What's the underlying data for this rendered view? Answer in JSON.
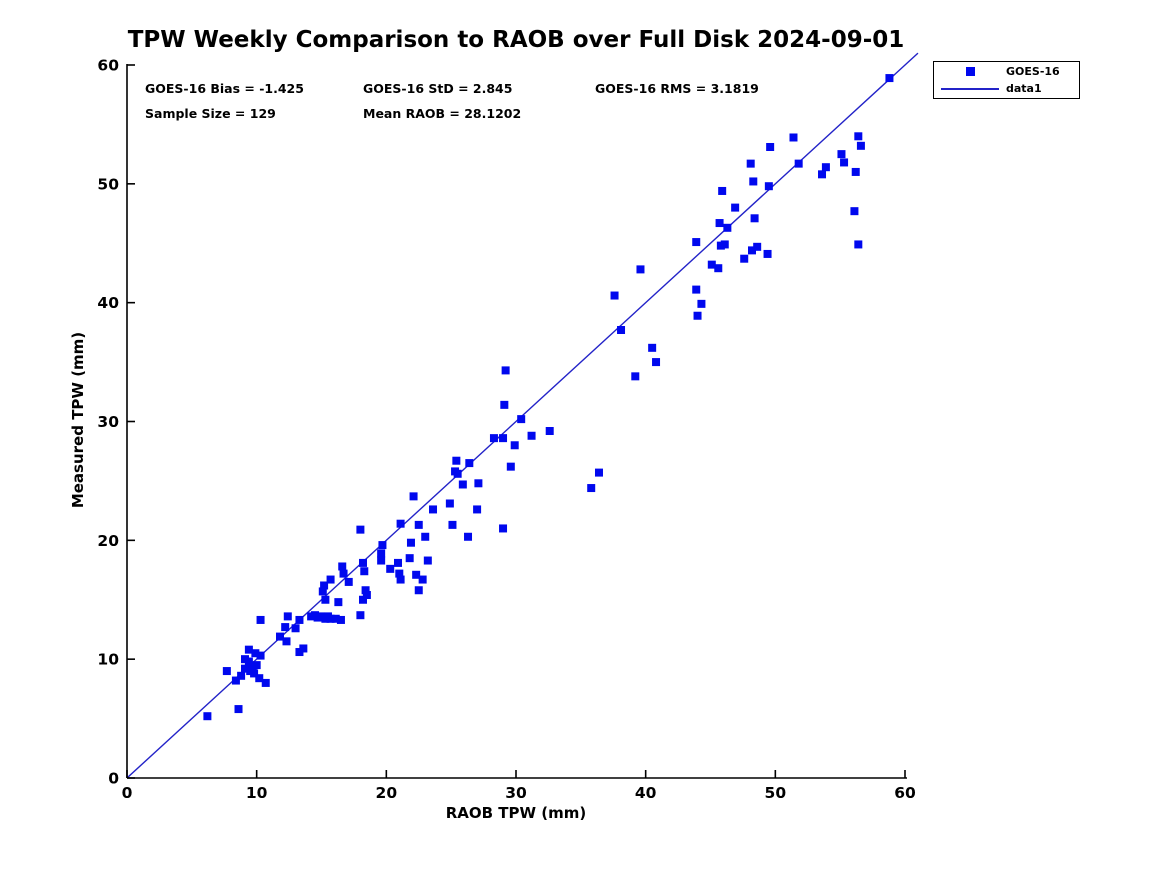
{
  "chart_data": {
    "type": "scatter",
    "title": "TPW Weekly Comparison to RAOB over Full Disk 2024-09-01",
    "xlabel": "RAOB TPW (mm)",
    "ylabel": "Measured TPW (mm)",
    "xlim": [
      0,
      60
    ],
    "ylim": [
      0,
      60
    ],
    "xticks": [
      0,
      10,
      20,
      30,
      40,
      50,
      60
    ],
    "yticks": [
      0,
      10,
      20,
      30,
      40,
      50,
      60
    ],
    "grid": false,
    "legend_position": "outside-top-right",
    "stats": {
      "bias": "GOES-16 Bias = -1.425",
      "std": "GOES-16 StD = 2.845",
      "rms": "GOES-16 RMS = 3.1819",
      "sample_size": "Sample Size = 129",
      "mean_raob": "Mean RAOB = 28.1202"
    },
    "legend": [
      {
        "label": "GOES-16",
        "symbol": "square-marker"
      },
      {
        "label": "data1",
        "symbol": "line"
      }
    ],
    "identity_line": {
      "x": [
        0,
        61
      ],
      "y": [
        0,
        61
      ]
    },
    "colors": {
      "marker": "#0008ee",
      "line": "#2323c8",
      "axis": "#000000"
    },
    "series": [
      {
        "name": "GOES-16",
        "points": [
          [
            6.2,
            5.2
          ],
          [
            8.6,
            5.8
          ],
          [
            7.7,
            9.0
          ],
          [
            8.4,
            8.2
          ],
          [
            8.8,
            8.6
          ],
          [
            9.1,
            9.2
          ],
          [
            9.4,
            9.8
          ],
          [
            9.1,
            10.0
          ],
          [
            9.5,
            9.0
          ],
          [
            10.0,
            9.5
          ],
          [
            10.3,
            10.3
          ],
          [
            9.9,
            10.5
          ],
          [
            9.4,
            10.8
          ],
          [
            9.8,
            8.8
          ],
          [
            10.2,
            8.4
          ],
          [
            10.7,
            8.0
          ],
          [
            10.3,
            13.3
          ],
          [
            9.7,
            9.3
          ],
          [
            18.0,
            20.9
          ],
          [
            21.1,
            21.4
          ],
          [
            22.5,
            21.3
          ],
          [
            23.0,
            20.3
          ],
          [
            25.1,
            21.3
          ],
          [
            26.3,
            20.3
          ],
          [
            19.7,
            19.6
          ],
          [
            21.9,
            19.8
          ],
          [
            19.6,
            18.9
          ],
          [
            19.6,
            18.3
          ],
          [
            21.8,
            18.5
          ],
          [
            23.2,
            18.3
          ],
          [
            20.3,
            17.6
          ],
          [
            20.9,
            18.1
          ],
          [
            21.0,
            17.2
          ],
          [
            21.1,
            16.7
          ],
          [
            22.3,
            17.1
          ],
          [
            22.8,
            16.7
          ],
          [
            22.5,
            15.8
          ],
          [
            18.2,
            18.1
          ],
          [
            18.3,
            17.4
          ],
          [
            16.6,
            17.8
          ],
          [
            16.7,
            17.2
          ],
          [
            15.7,
            16.7
          ],
          [
            17.1,
            16.5
          ],
          [
            15.2,
            16.2
          ],
          [
            15.1,
            15.7
          ],
          [
            15.3,
            15.0
          ],
          [
            16.3,
            14.8
          ],
          [
            18.4,
            15.8
          ],
          [
            18.5,
            15.4
          ],
          [
            18.2,
            15.0
          ],
          [
            12.4,
            13.6
          ],
          [
            13.3,
            13.3
          ],
          [
            14.2,
            13.6
          ],
          [
            14.5,
            13.7
          ],
          [
            14.9,
            13.6
          ],
          [
            15.3,
            13.4
          ],
          [
            15.7,
            13.4
          ],
          [
            16.5,
            13.3
          ],
          [
            18.0,
            13.7
          ],
          [
            12.2,
            12.7
          ],
          [
            13.0,
            12.6
          ],
          [
            11.8,
            11.9
          ],
          [
            13.3,
            10.6
          ],
          [
            13.6,
            10.9
          ],
          [
            16.1,
            13.4
          ],
          [
            12.3,
            11.5
          ],
          [
            14.7,
            13.5
          ],
          [
            15.5,
            13.6
          ],
          [
            29.1,
            31.4
          ],
          [
            30.4,
            30.2
          ],
          [
            31.2,
            28.8
          ],
          [
            32.6,
            29.2
          ],
          [
            29.0,
            28.6
          ],
          [
            28.3,
            28.6
          ],
          [
            29.9,
            28.0
          ],
          [
            29.6,
            26.2
          ],
          [
            25.4,
            26.7
          ],
          [
            26.4,
            26.5
          ],
          [
            25.3,
            25.8
          ],
          [
            25.5,
            25.6
          ],
          [
            25.9,
            24.7
          ],
          [
            27.1,
            24.8
          ],
          [
            22.1,
            23.7
          ],
          [
            23.6,
            22.6
          ],
          [
            24.9,
            23.1
          ],
          [
            27.0,
            22.6
          ],
          [
            29.0,
            21.0
          ],
          [
            36.4,
            25.7
          ],
          [
            35.8,
            24.4
          ],
          [
            29.2,
            34.3
          ],
          [
            43.9,
            45.1
          ],
          [
            45.8,
            44.8
          ],
          [
            46.1,
            44.9
          ],
          [
            47.6,
            43.7
          ],
          [
            48.2,
            44.4
          ],
          [
            48.6,
            44.7
          ],
          [
            49.4,
            44.1
          ],
          [
            45.1,
            43.2
          ],
          [
            45.6,
            42.9
          ],
          [
            39.6,
            42.8
          ],
          [
            37.6,
            40.6
          ],
          [
            43.9,
            41.1
          ],
          [
            44.3,
            39.9
          ],
          [
            44.0,
            38.9
          ],
          [
            38.1,
            37.7
          ],
          [
            40.5,
            36.2
          ],
          [
            40.8,
            35.0
          ],
          [
            39.2,
            33.8
          ],
          [
            58.8,
            58.9
          ],
          [
            51.4,
            53.9
          ],
          [
            49.6,
            53.1
          ],
          [
            56.4,
            54.0
          ],
          [
            56.6,
            53.2
          ],
          [
            55.1,
            52.5
          ],
          [
            55.3,
            51.8
          ],
          [
            51.8,
            51.7
          ],
          [
            48.1,
            51.7
          ],
          [
            53.9,
            51.4
          ],
          [
            53.6,
            50.8
          ],
          [
            56.2,
            51.0
          ],
          [
            48.3,
            50.2
          ],
          [
            49.5,
            49.8
          ],
          [
            45.9,
            49.4
          ],
          [
            46.9,
            48.0
          ],
          [
            56.1,
            47.7
          ],
          [
            45.7,
            46.7
          ],
          [
            46.3,
            46.3
          ],
          [
            48.4,
            47.1
          ],
          [
            56.4,
            44.9
          ]
        ]
      }
    ]
  }
}
